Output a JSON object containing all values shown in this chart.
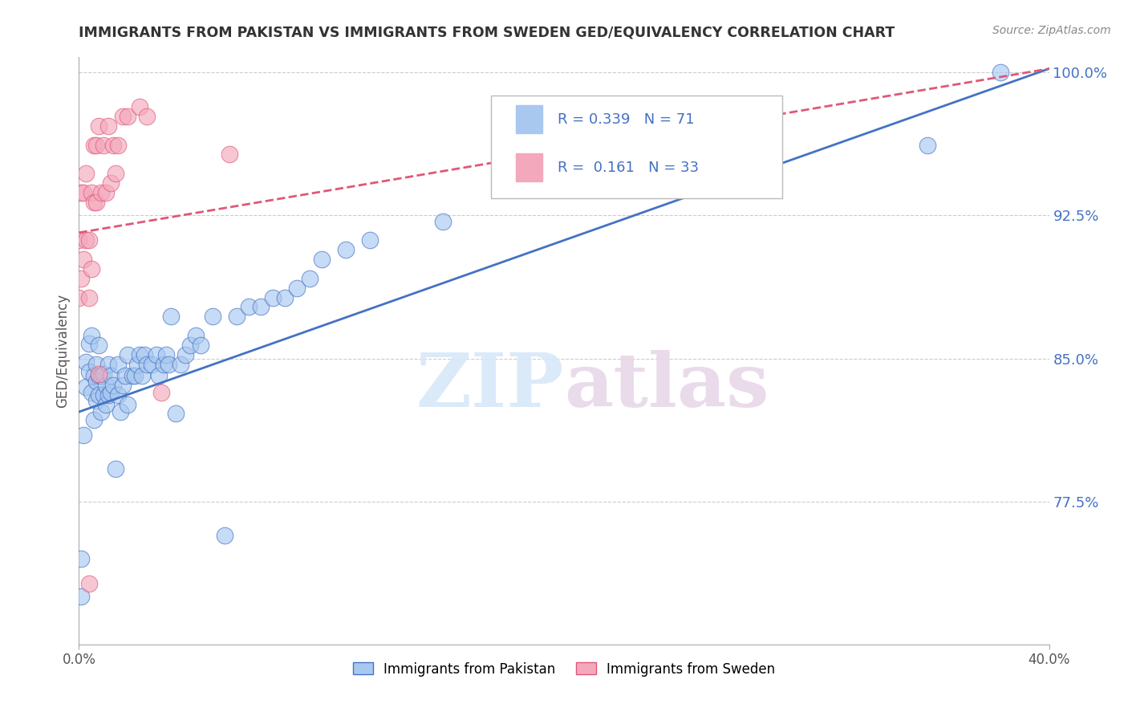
{
  "title": "IMMIGRANTS FROM PAKISTAN VS IMMIGRANTS FROM SWEDEN GED/EQUIVALENCY CORRELATION CHART",
  "source": "Source: ZipAtlas.com",
  "ylabel": "GED/Equivalency",
  "legend_label1": "Immigrants from Pakistan",
  "legend_label2": "Immigrants from Sweden",
  "R1": 0.339,
  "N1": 71,
  "R2": 0.161,
  "N2": 33,
  "xmin": 0.0,
  "xmax": 0.4,
  "ymin": 0.7,
  "ymax": 1.008,
  "yticks": [
    0.775,
    0.85,
    0.925,
    1.0
  ],
  "ytick_labels": [
    "77.5%",
    "85.0%",
    "92.5%",
    "100.0%"
  ],
  "xtick_labels": [
    "0.0%",
    "40.0%"
  ],
  "xticks": [
    0.0,
    0.4
  ],
  "color_pakistan": "#A8C8F0",
  "color_sweden": "#F4A8BC",
  "color_pakistan_line": "#4472C4",
  "color_sweden_line": "#E05878",
  "watermark_zip": "ZIP",
  "watermark_atlas": "atlas",
  "pakistan_x": [
    0.001,
    0.001,
    0.002,
    0.003,
    0.003,
    0.004,
    0.004,
    0.005,
    0.005,
    0.006,
    0.006,
    0.007,
    0.007,
    0.007,
    0.008,
    0.008,
    0.008,
    0.009,
    0.009,
    0.01,
    0.01,
    0.011,
    0.011,
    0.012,
    0.012,
    0.013,
    0.013,
    0.014,
    0.015,
    0.016,
    0.016,
    0.017,
    0.018,
    0.019,
    0.02,
    0.02,
    0.022,
    0.023,
    0.024,
    0.025,
    0.026,
    0.027,
    0.028,
    0.03,
    0.032,
    0.033,
    0.035,
    0.036,
    0.037,
    0.038,
    0.04,
    0.042,
    0.044,
    0.046,
    0.048,
    0.05,
    0.055,
    0.06,
    0.065,
    0.07,
    0.075,
    0.08,
    0.085,
    0.09,
    0.095,
    0.1,
    0.11,
    0.12,
    0.15,
    0.35,
    0.38
  ],
  "pakistan_y": [
    0.725,
    0.745,
    0.81,
    0.835,
    0.848,
    0.843,
    0.858,
    0.832,
    0.862,
    0.818,
    0.841,
    0.828,
    0.838,
    0.847,
    0.831,
    0.841,
    0.857,
    0.822,
    0.841,
    0.831,
    0.842,
    0.826,
    0.836,
    0.831,
    0.847,
    0.832,
    0.841,
    0.836,
    0.792,
    0.831,
    0.847,
    0.822,
    0.836,
    0.841,
    0.826,
    0.852,
    0.841,
    0.841,
    0.847,
    0.852,
    0.841,
    0.852,
    0.847,
    0.847,
    0.852,
    0.841,
    0.847,
    0.852,
    0.847,
    0.872,
    0.821,
    0.847,
    0.852,
    0.857,
    0.862,
    0.857,
    0.872,
    0.757,
    0.872,
    0.877,
    0.877,
    0.882,
    0.882,
    0.887,
    0.892,
    0.902,
    0.907,
    0.912,
    0.922,
    0.962,
    1.0
  ],
  "sweden_x": [
    0.0,
    0.0,
    0.001,
    0.001,
    0.002,
    0.002,
    0.003,
    0.003,
    0.004,
    0.004,
    0.005,
    0.005,
    0.006,
    0.006,
    0.007,
    0.007,
    0.008,
    0.009,
    0.01,
    0.011,
    0.012,
    0.013,
    0.014,
    0.015,
    0.016,
    0.018,
    0.02,
    0.025,
    0.028,
    0.034,
    0.062,
    0.004,
    0.008
  ],
  "sweden_y": [
    0.882,
    0.912,
    0.892,
    0.937,
    0.902,
    0.937,
    0.912,
    0.947,
    0.882,
    0.912,
    0.897,
    0.937,
    0.932,
    0.962,
    0.932,
    0.962,
    0.972,
    0.937,
    0.962,
    0.937,
    0.972,
    0.942,
    0.962,
    0.947,
    0.962,
    0.977,
    0.977,
    0.982,
    0.977,
    0.832,
    0.957,
    0.732,
    0.842
  ],
  "trend_pak_x0": 0.0,
  "trend_pak_x1": 0.4,
  "trend_pak_y0": 0.822,
  "trend_pak_y1": 1.002,
  "trend_swe_x0": 0.0,
  "trend_swe_x1": 0.4,
  "trend_swe_y0": 0.916,
  "trend_swe_y1": 1.002
}
